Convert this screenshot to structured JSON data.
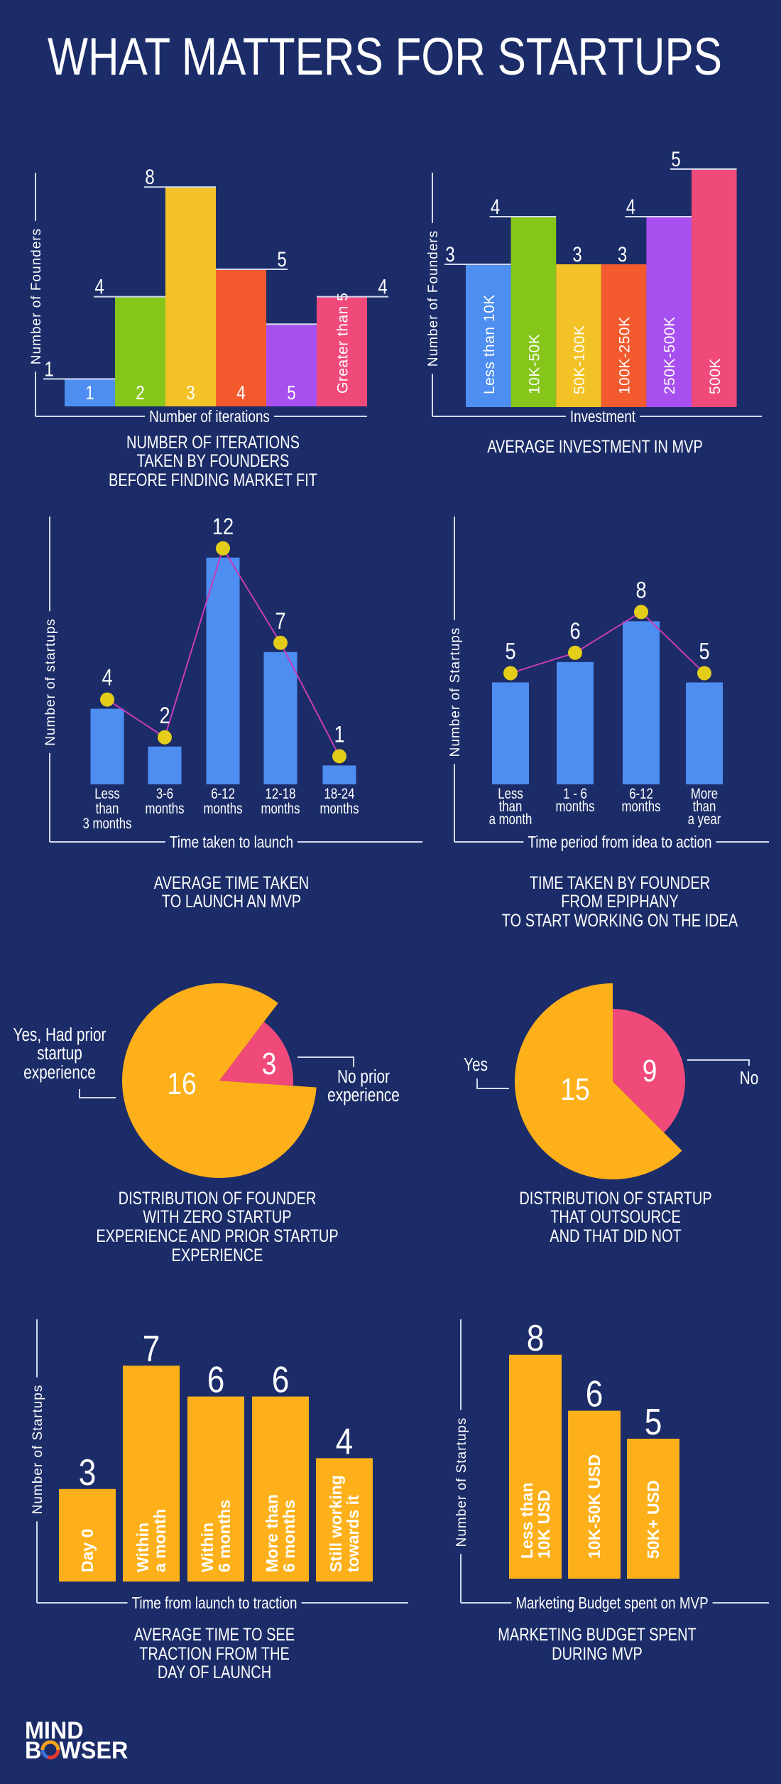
{
  "title": "WHAT MATTERS FOR STARTUPS",
  "colors": {
    "background": "#1b2c68",
    "axis": "#d3d9ee",
    "text": "#ffffff",
    "blue": "#4e8ef0",
    "green": "#86c61b",
    "yellow": "#f3c226",
    "red_orange": "#f35a2e",
    "purple": "#a84ff0",
    "pink": "#f04a7a",
    "orange": "#fdb019",
    "dot": "#e3cd18",
    "connector": "#c93bb9"
  },
  "chart_data": [
    {
      "type": "bar",
      "caption": [
        "NUMBER OF ITERATIONS",
        "TAKEN BY FOUNDERS",
        "BEFORE FINDING MARKET FIT"
      ],
      "xlabel": "Number of iterations",
      "ylabel": "Number of Founders",
      "categories": [
        "1",
        "2",
        "3",
        "4",
        "5",
        "Greater than 5"
      ],
      "values": [
        1,
        4,
        8,
        5,
        3,
        4
      ],
      "value_labels": [
        "1",
        "4",
        "8",
        "5",
        "3",
        "4"
      ],
      "colors": [
        "#4e8ef0",
        "#86c61b",
        "#f3c226",
        "#f35a2e",
        "#a84ff0",
        "#f04a7a"
      ]
    },
    {
      "type": "bar",
      "caption": [
        "AVERAGE INVESTMENT IN MVP"
      ],
      "xlabel": "Investment",
      "ylabel": "Number of Founders",
      "categories": [
        "Less than 10K",
        "10K-50K",
        "50K-100K",
        "100K-250K",
        "250K-500K",
        "500K"
      ],
      "values": [
        3,
        4,
        3,
        3,
        4,
        5
      ],
      "value_labels": [
        "3",
        "4",
        "3",
        "3",
        "4",
        "5"
      ],
      "colors": [
        "#4e8ef0",
        "#86c61b",
        "#f3c226",
        "#f35a2e",
        "#a84ff0",
        "#f04a7a"
      ]
    },
    {
      "type": "bar",
      "caption": [
        "AVERAGE TIME TAKEN",
        "TO LAUNCH AN MVP"
      ],
      "xlabel": "Time taken to launch",
      "ylabel": "Number of startups",
      "categories": [
        [
          "Less",
          "than",
          "3 months"
        ],
        [
          "3-6",
          "months"
        ],
        [
          "6-12",
          "months"
        ],
        [
          "12-18",
          "months"
        ],
        [
          "18-24",
          "months"
        ]
      ],
      "values": [
        4,
        2,
        12,
        7,
        1
      ],
      "value_labels": [
        "4",
        "2",
        "12",
        "7",
        "1"
      ],
      "overlay": "line-with-dots"
    },
    {
      "type": "bar",
      "caption": [
        "TIME TAKEN BY FOUNDER",
        "FROM EPIPHANY",
        "TO START WORKING ON THE IDEA"
      ],
      "xlabel": "Time period from idea to action",
      "ylabel": "Number of Startups",
      "categories": [
        [
          "Less",
          "than",
          "a month"
        ],
        [
          "1 - 6",
          "months"
        ],
        [
          "6-12",
          "months"
        ],
        [
          "More",
          "than",
          "a year"
        ]
      ],
      "values": [
        5,
        6,
        8,
        5
      ],
      "value_labels": [
        "5",
        "6",
        "8",
        "5"
      ],
      "overlay": "line-with-dots"
    },
    {
      "type": "pie",
      "caption": [
        "DISTRIBUTION OF FOUNDER",
        "WITH ZERO STARTUP",
        "EXPERIENCE AND PRIOR STARTUP",
        "EXPERIENCE"
      ],
      "slices": [
        {
          "label": [
            "Yes, Had prior",
            "startup",
            "experience"
          ],
          "value": 16,
          "value_label": "16",
          "color": "#fdb019"
        },
        {
          "label": [
            "No prior",
            "experience"
          ],
          "value": 3,
          "value_label": "3",
          "color": "#f04a7a"
        }
      ]
    },
    {
      "type": "pie",
      "caption": [
        "DISTRIBUTION OF STARTUP",
        "THAT OUTSOURCE",
        "AND THAT DID NOT"
      ],
      "slices": [
        {
          "label": [
            "Yes"
          ],
          "value": 15,
          "value_label": "15",
          "color": "#fdb019"
        },
        {
          "label": [
            "No"
          ],
          "value": 9,
          "value_label": "9",
          "color": "#f04a7a"
        }
      ]
    },
    {
      "type": "bar",
      "caption": [
        "AVERAGE TIME TO SEE",
        "TRACTION FROM THE",
        "DAY OF LAUNCH"
      ],
      "xlabel": "Time from launch to traction",
      "ylabel": "Number of Startups",
      "categories": [
        [
          "Day 0"
        ],
        [
          "Within",
          "a month"
        ],
        [
          "Within",
          "6 months"
        ],
        [
          "More than",
          "6 months"
        ],
        [
          "Still working",
          "towards it"
        ]
      ],
      "values": [
        3,
        7,
        6,
        6,
        4
      ],
      "value_labels": [
        "3",
        "7",
        "6",
        "6",
        "4"
      ],
      "color": "#fdb019"
    },
    {
      "type": "bar",
      "caption": [
        "MARKETING BUDGET SPENT",
        "DURING MVP"
      ],
      "xlabel": "Marketing Budget spent on MVP",
      "ylabel": "Number of Startups",
      "categories": [
        [
          "Less than",
          "10K USD"
        ],
        [
          "10K-50K USD"
        ],
        [
          "50K+ USD"
        ]
      ],
      "values": [
        8,
        6,
        5
      ],
      "value_labels": [
        "8",
        "6",
        "5"
      ],
      "color": "#fdb019"
    }
  ],
  "logo": {
    "line1": "MIND",
    "line2": "BOWSER"
  }
}
